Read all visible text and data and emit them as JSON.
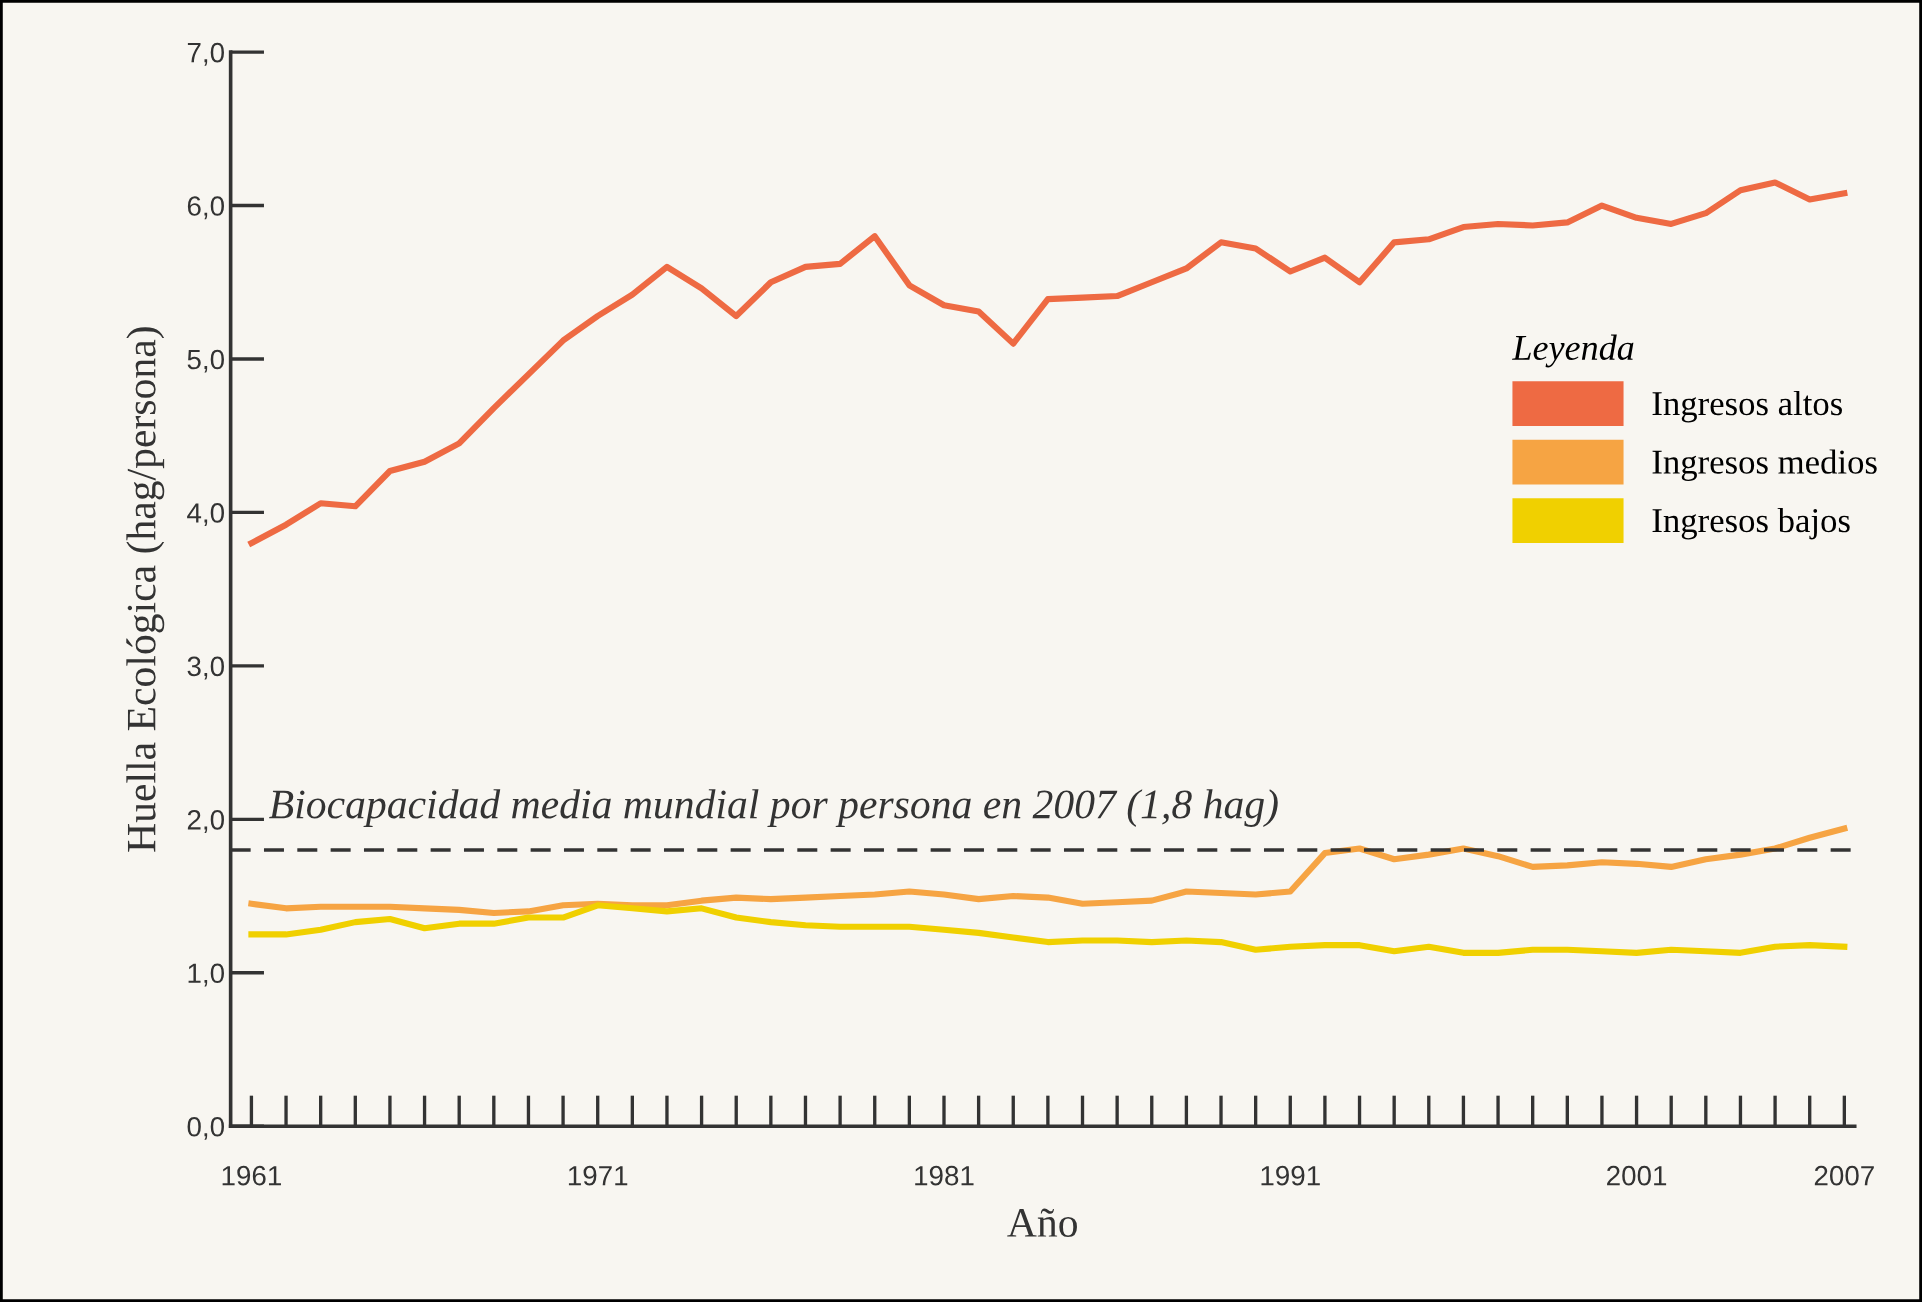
{
  "chart_data": {
    "type": "line",
    "xlabel": "Año",
    "ylabel": "Huella Ecológica (hag/persona)",
    "legend_title": "Leyenda",
    "legend": "right",
    "x": [
      1961,
      1962,
      1963,
      1964,
      1965,
      1966,
      1967,
      1968,
      1969,
      1970,
      1971,
      1972,
      1973,
      1974,
      1975,
      1976,
      1977,
      1978,
      1979,
      1980,
      1981,
      1982,
      1983,
      1984,
      1985,
      1986,
      1987,
      1988,
      1989,
      1990,
      1991,
      1992,
      1993,
      1994,
      1995,
      1996,
      1997,
      1998,
      1999,
      2000,
      2001,
      2002,
      2003,
      2004,
      2005,
      2006,
      2007
    ],
    "series": [
      {
        "name": "Ingresos altos",
        "color": "#ee6a43",
        "values": [
          3.8,
          3.92,
          4.06,
          4.04,
          4.27,
          4.33,
          4.45,
          4.68,
          4.9,
          5.12,
          5.28,
          5.42,
          5.6,
          5.46,
          5.28,
          5.5,
          5.6,
          5.62,
          5.8,
          5.48,
          5.35,
          5.31,
          5.1,
          5.39,
          5.4,
          5.41,
          5.5,
          5.59,
          5.76,
          5.72,
          5.57,
          5.66,
          5.5,
          5.76,
          5.78,
          5.86,
          5.88,
          5.87,
          5.89,
          6.0,
          5.92,
          5.88,
          5.95,
          6.1,
          6.15,
          6.04,
          6.08
        ]
      },
      {
        "name": "Ingresos medios",
        "color": "#f6a443",
        "values": [
          1.45,
          1.42,
          1.43,
          1.43,
          1.43,
          1.42,
          1.41,
          1.39,
          1.4,
          1.44,
          1.45,
          1.44,
          1.44,
          1.47,
          1.49,
          1.48,
          1.49,
          1.5,
          1.51,
          1.53,
          1.51,
          1.48,
          1.5,
          1.49,
          1.45,
          1.46,
          1.47,
          1.53,
          1.52,
          1.51,
          1.53,
          1.78,
          1.81,
          1.74,
          1.77,
          1.81,
          1.76,
          1.69,
          1.7,
          1.72,
          1.71,
          1.69,
          1.74,
          1.77,
          1.81,
          1.88,
          1.94
        ]
      },
      {
        "name": "Ingresos bajos",
        "color": "#f0d000",
        "values": [
          1.25,
          1.25,
          1.28,
          1.33,
          1.35,
          1.29,
          1.32,
          1.32,
          1.36,
          1.36,
          1.44,
          1.42,
          1.4,
          1.42,
          1.36,
          1.33,
          1.31,
          1.3,
          1.3,
          1.3,
          1.28,
          1.26,
          1.23,
          1.2,
          1.21,
          1.21,
          1.2,
          1.21,
          1.2,
          1.15,
          1.17,
          1.18,
          1.18,
          1.14,
          1.17,
          1.13,
          1.13,
          1.15,
          1.15,
          1.14,
          1.13,
          1.15,
          1.14,
          1.13,
          1.17,
          1.18,
          1.17
        ]
      }
    ],
    "ref_lines": [
      {
        "axis": "y",
        "value": 1.8,
        "label": "Biocapacidad media mundial por persona en 2007 (1,8 hag)",
        "color": "#333333",
        "line_style": "dashed"
      }
    ],
    "xlim": [
      1960.4,
      2007.3
    ],
    "ylim": [
      0,
      7
    ],
    "yticks": [
      {
        "value": 0,
        "label": "0,0"
      },
      {
        "value": 1,
        "label": "1,0"
      },
      {
        "value": 2,
        "label": "2,0"
      },
      {
        "value": 3,
        "label": "3,0"
      },
      {
        "value": 4,
        "label": "4,0"
      },
      {
        "value": 5,
        "label": "5,0"
      },
      {
        "value": 6,
        "label": "6,0"
      },
      {
        "value": 7,
        "label": "7,0"
      }
    ],
    "xticks": [
      1961,
      {
        "value": 1962,
        "label": null
      },
      {
        "value": 1963,
        "label": null
      },
      {
        "value": 1964,
        "label": null
      },
      {
        "value": 1965,
        "label": null
      },
      {
        "value": 1966,
        "label": null
      },
      {
        "value": 1967,
        "label": null
      },
      {
        "value": 1968,
        "label": null
      },
      {
        "value": 1969,
        "label": null
      },
      {
        "value": 1970,
        "label": null
      },
      1971,
      {
        "value": 1972,
        "label": null
      },
      {
        "value": 1973,
        "label": null
      },
      {
        "value": 1974,
        "label": null
      },
      {
        "value": 1975,
        "label": null
      },
      {
        "value": 1976,
        "label": null
      },
      {
        "value": 1977,
        "label": null
      },
      {
        "value": 1978,
        "label": null
      },
      {
        "value": 1979,
        "label": null
      },
      {
        "value": 1980,
        "label": null
      },
      1981,
      {
        "value": 1982,
        "label": null
      },
      {
        "value": 1983,
        "label": null
      },
      {
        "value": 1984,
        "label": null
      },
      {
        "value": 1985,
        "label": null
      },
      {
        "value": 1986,
        "label": null
      },
      {
        "value": 1987,
        "label": null
      },
      {
        "value": 1988,
        "label": null
      },
      {
        "value": 1989,
        "label": null
      },
      {
        "value": 1990,
        "label": null
      },
      1991,
      {
        "value": 1992,
        "label": null
      },
      {
        "value": 1993,
        "label": null
      },
      {
        "value": 1994,
        "label": null
      },
      {
        "value": 1995,
        "label": null
      },
      {
        "value": 1996,
        "label": null
      },
      {
        "value": 1997,
        "label": null
      },
      {
        "value": 1998,
        "label": null
      },
      {
        "value": 1999,
        "label": null
      },
      {
        "value": 2000,
        "label": null
      },
      2001,
      {
        "value": 2002,
        "label": null
      },
      {
        "value": 2003,
        "label": null
      },
      {
        "value": 2004,
        "label": null
      },
      {
        "value": 2005,
        "label": null
      },
      {
        "value": 2006,
        "label": null
      },
      2007
    ],
    "grid": false,
    "marker": "none",
    "line_style": "solid"
  }
}
